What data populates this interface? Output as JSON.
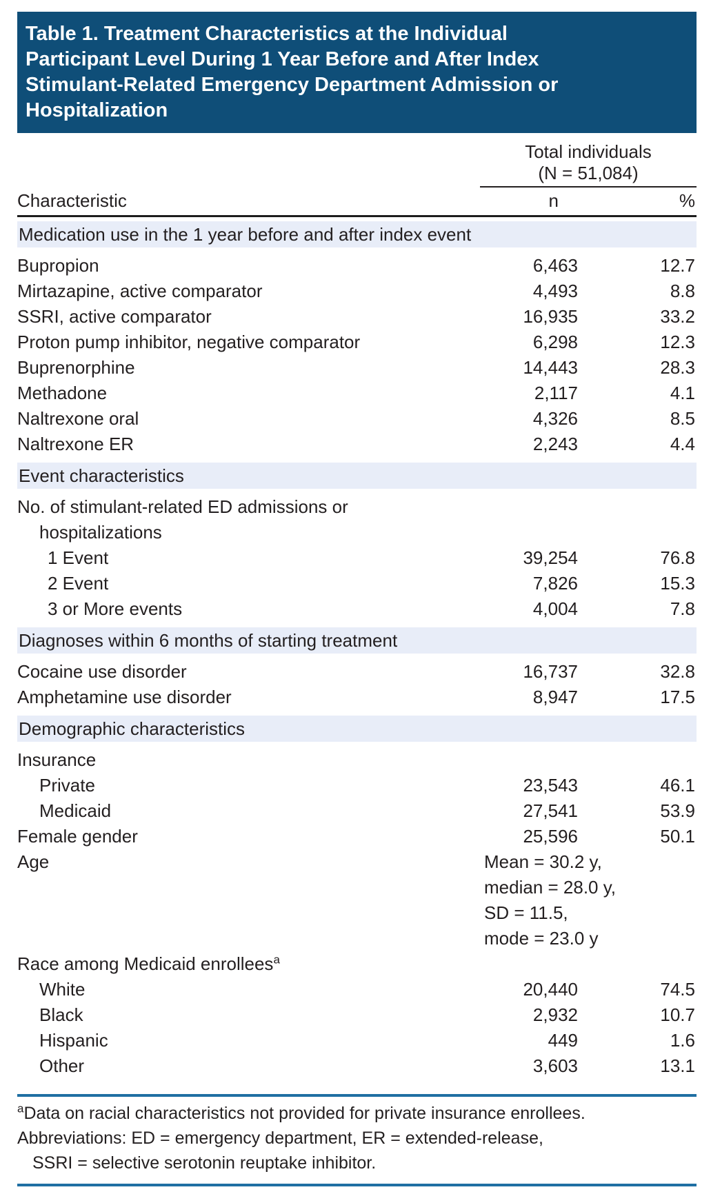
{
  "colors": {
    "header_bg": "#0F4E78",
    "band_bg": "#E8EDF8",
    "rule_blue": "#1F6FA3",
    "text": "#231F20"
  },
  "title": {
    "lines": [
      "Table 1. Treatment Characteristics at the Individual",
      "Participant Level During 1 Year Before and After Index",
      "Stimulant-Related Emergency Department Admission or",
      "Hospitalization"
    ]
  },
  "columns": {
    "group_line1": "Total individuals",
    "group_line2": "(N = 51,084)",
    "characteristic": "Characteristic",
    "n": "n",
    "pct": "%"
  },
  "sections": [
    {
      "header": "Medication use in the 1 year before and after index event",
      "rows": [
        {
          "label": "Bupropion",
          "n": "6,463",
          "pct": "12.7"
        },
        {
          "label": "Mirtazapine, active comparator",
          "n": "4,493",
          "pct": "8.8"
        },
        {
          "label": "SSRI, active comparator",
          "n": "16,935",
          "pct": "33.2"
        },
        {
          "label": "Proton pump inhibitor, negative comparator",
          "n": "6,298",
          "pct": "12.3"
        },
        {
          "label": "Buprenorphine",
          "n": "14,443",
          "pct": "28.3"
        },
        {
          "label": "Methadone",
          "n": "2,117",
          "pct": "4.1"
        },
        {
          "label": "Naltrexone oral",
          "n": "4,326",
          "pct": "8.5"
        },
        {
          "label": "Naltrexone ER",
          "n": "2,243",
          "pct": "4.4"
        }
      ]
    },
    {
      "header": "Event characteristics",
      "label_row": {
        "line1": "No. of stimulant-related ED admissions or",
        "line2": "hospitalizations"
      },
      "rows": [
        {
          "label": "1 Event",
          "n": "39,254",
          "pct": "76.8"
        },
        {
          "label": "2 Event",
          "n": "7,826",
          "pct": "15.3"
        },
        {
          "label": "3 or More events",
          "n": "4,004",
          "pct": "7.8"
        }
      ]
    },
    {
      "header": "Diagnoses within 6 months of starting treatment",
      "rows": [
        {
          "label": "Cocaine use disorder",
          "n": "16,737",
          "pct": "32.8"
        },
        {
          "label": "Amphetamine use disorder",
          "n": "8,947",
          "pct": "17.5"
        }
      ]
    },
    {
      "header": "Demographic characteristics",
      "insurance_label": "Insurance",
      "rows_insurance": [
        {
          "label": "Private",
          "n": "23,543",
          "pct": "46.1"
        },
        {
          "label": "Medicaid",
          "n": "27,541",
          "pct": "53.9"
        }
      ],
      "female_row": {
        "label": "Female gender",
        "n": "25,596",
        "pct": "50.1"
      },
      "age_row": {
        "label": "Age",
        "lines": [
          "Mean = 30.2 y,",
          "median = 28.0 y,",
          "SD = 11.5,",
          "mode = 23.0 y"
        ]
      },
      "race_label": {
        "text": "Race among Medicaid enrollees",
        "sup": "a"
      },
      "rows_race": [
        {
          "label": "White",
          "n": "20,440",
          "pct": "74.5"
        },
        {
          "label": "Black",
          "n": "2,932",
          "pct": "10.7"
        },
        {
          "label": "Hispanic",
          "n": "449",
          "pct": "1.6"
        },
        {
          "label": "Other",
          "n": "3,603",
          "pct": "13.1"
        }
      ]
    }
  ],
  "footnotes": {
    "fn1_sup": "a",
    "fn1_text": "Data on racial characteristics not provided for private insurance enrollees.",
    "fn2": "Abbreviations: ED = emergency department, ER = extended-release,",
    "fn3": "SSRI = selective serotonin reuptake inhibitor."
  }
}
